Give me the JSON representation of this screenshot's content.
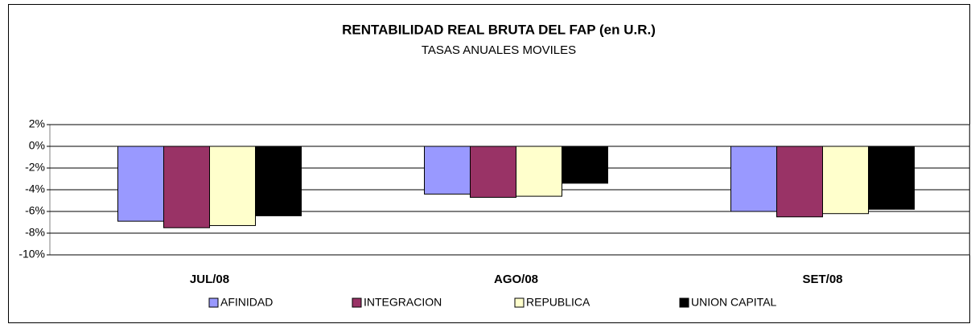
{
  "chart_data": {
    "type": "bar",
    "title": "RENTABILIDAD REAL BRUTA DEL FAP (en U.R.)",
    "subtitle": "TASAS ANUALES MOVILES",
    "categories": [
      "JUL/08",
      "AGO/08",
      "SET/08"
    ],
    "series": [
      {
        "name": "AFINIDAD",
        "color": "#9999ff",
        "values": [
          -6.9,
          -4.4,
          -6.0
        ]
      },
      {
        "name": "INTEGRACION",
        "color": "#993366",
        "values": [
          -7.5,
          -4.7,
          -6.5
        ]
      },
      {
        "name": "REPUBLICA",
        "color": "#ffffcc",
        "values": [
          -7.3,
          -4.6,
          -6.2
        ]
      },
      {
        "name": "UNION CAPITAL",
        "color": "#000000",
        "values": [
          -6.4,
          -3.4,
          -5.8
        ]
      }
    ],
    "ylim": [
      -10,
      2
    ],
    "yticks": [
      {
        "value": -10,
        "label": "-10%"
      },
      {
        "value": -8,
        "label": "-8%"
      },
      {
        "value": -6,
        "label": "-6%"
      },
      {
        "value": -4,
        "label": "-4%"
      },
      {
        "value": -2,
        "label": "-2%"
      },
      {
        "value": 0,
        "label": "0%"
      },
      {
        "value": 2,
        "label": "2%"
      }
    ],
    "grid": true
  }
}
